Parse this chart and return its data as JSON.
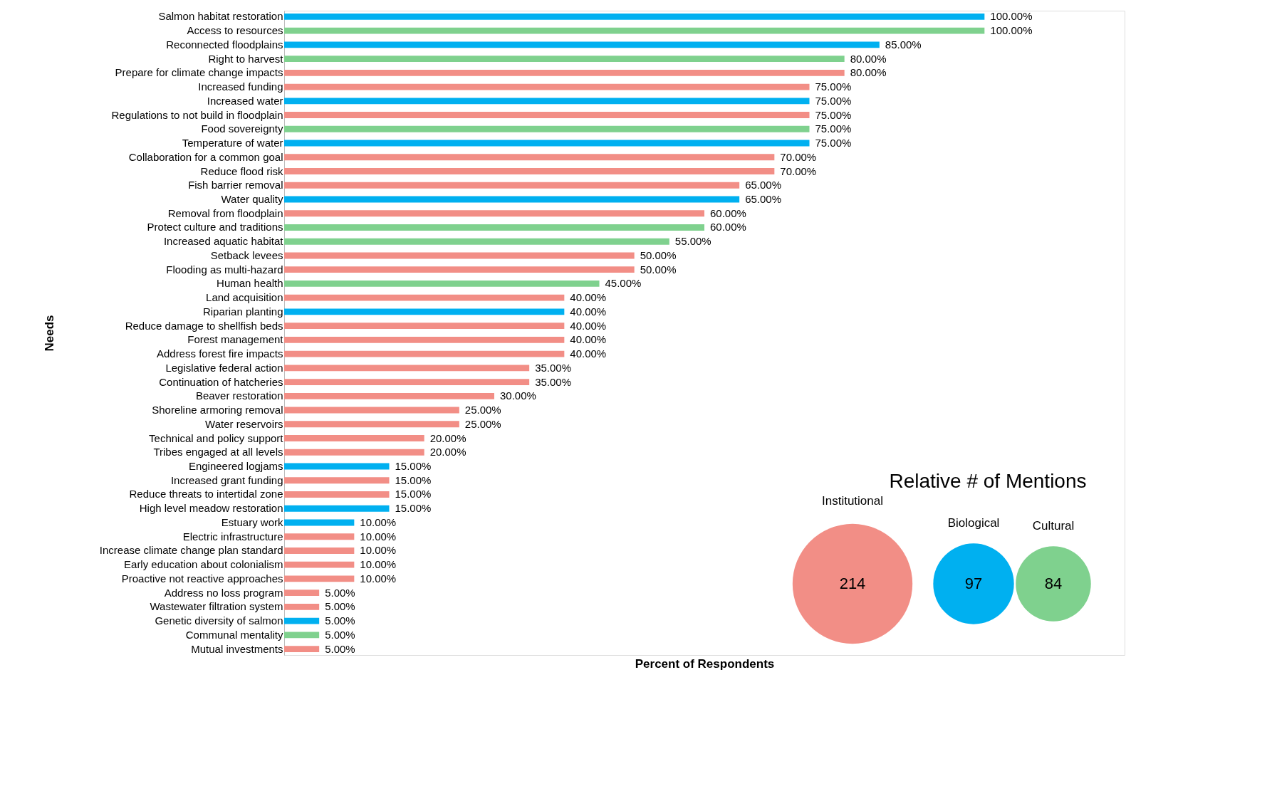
{
  "chart_data": [
    {
      "type": "bar",
      "orientation": "horizontal",
      "xlabel": "Percent of Respondents",
      "ylabel": "Needs",
      "xlim": [
        0,
        120
      ],
      "tick_labels": "y",
      "grid": false,
      "categories": [
        "Salmon habitat restoration",
        "Access to resources",
        "Reconnected floodplains",
        "Right to harvest",
        "Prepare for climate change impacts",
        "Increased funding",
        "Increased water",
        "Regulations to not build in floodplain",
        "Food sovereignty",
        "Temperature of water",
        "Collaboration for a common goal",
        "Reduce flood risk",
        "Fish barrier removal",
        "Water quality",
        "Removal from floodplain",
        "Protect culture and traditions",
        "Increased aquatic habitat",
        "Setback levees",
        "Flooding as multi-hazard",
        "Human health",
        "Land acquisition",
        "Riparian planting",
        "Reduce damage to shellfish beds",
        "Forest management",
        "Address forest fire impacts",
        "Legislative federal action",
        "Continuation of hatcheries",
        "Beaver restoration",
        "Shoreline armoring removal",
        "Water reservoirs",
        "Technical and policy support",
        "Tribes engaged at all levels",
        "Engineered logjams",
        "Increased grant funding",
        "Reduce threats to intertidal zone",
        "High level meadow restoration",
        "Estuary work",
        "Electric infrastructure",
        "Increase climate change plan standard",
        "Early education about colonialism",
        "Proactive not reactive approaches",
        "Address no loss program",
        "Wastewater filtration system",
        "Genetic diversity of salmon",
        "Communal mentality",
        "Mutual investments"
      ],
      "values": [
        100,
        100,
        85,
        80,
        80,
        75,
        75,
        75,
        75,
        75,
        70,
        70,
        65,
        65,
        60,
        60,
        55,
        50,
        50,
        45,
        40,
        40,
        40,
        40,
        40,
        35,
        35,
        30,
        25,
        25,
        20,
        20,
        15,
        15,
        15,
        15,
        10,
        10,
        10,
        10,
        10,
        5,
        5,
        5,
        5,
        5
      ],
      "value_labels": [
        "100.00%",
        "100.00%",
        "85.00%",
        "80.00%",
        "80.00%",
        "75.00%",
        "75.00%",
        "75.00%",
        "75.00%",
        "75.00%",
        "70.00%",
        "70.00%",
        "65.00%",
        "65.00%",
        "60.00%",
        "60.00%",
        "55.00%",
        "50.00%",
        "50.00%",
        "45.00%",
        "40.00%",
        "40.00%",
        "40.00%",
        "40.00%",
        "40.00%",
        "35.00%",
        "35.00%",
        "30.00%",
        "25.00%",
        "25.00%",
        "20.00%",
        "20.00%",
        "15.00%",
        "15.00%",
        "15.00%",
        "15.00%",
        "10.00%",
        "10.00%",
        "10.00%",
        "10.00%",
        "10.00%",
        "5.00%",
        "5.00%",
        "5.00%",
        "5.00%",
        "5.00%"
      ],
      "colors": [
        "#00b0f0",
        "#7fd18e",
        "#00b0f0",
        "#7fd18e",
        "#f28e86",
        "#f28e86",
        "#00b0f0",
        "#f28e86",
        "#7fd18e",
        "#00b0f0",
        "#f28e86",
        "#f28e86",
        "#f28e86",
        "#00b0f0",
        "#f28e86",
        "#7fd18e",
        "#7fd18e",
        "#f28e86",
        "#f28e86",
        "#7fd18e",
        "#f28e86",
        "#00b0f0",
        "#f28e86",
        "#f28e86",
        "#f28e86",
        "#f28e86",
        "#f28e86",
        "#f28e86",
        "#f28e86",
        "#f28e86",
        "#f28e86",
        "#f28e86",
        "#00b0f0",
        "#f28e86",
        "#f28e86",
        "#00b0f0",
        "#00b0f0",
        "#f28e86",
        "#f28e86",
        "#f28e86",
        "#f28e86",
        "#f28e86",
        "#f28e86",
        "#00b0f0",
        "#7fd18e",
        "#f28e86"
      ]
    },
    {
      "type": "other",
      "title": "Relative # of Mentions",
      "categories": [
        "Institutional",
        "Biological",
        "Cultural"
      ],
      "values": [
        214,
        97,
        84
      ],
      "colors": [
        "#f28e86",
        "#00b0f0",
        "#7fd18e"
      ],
      "data_labels": true
    }
  ]
}
